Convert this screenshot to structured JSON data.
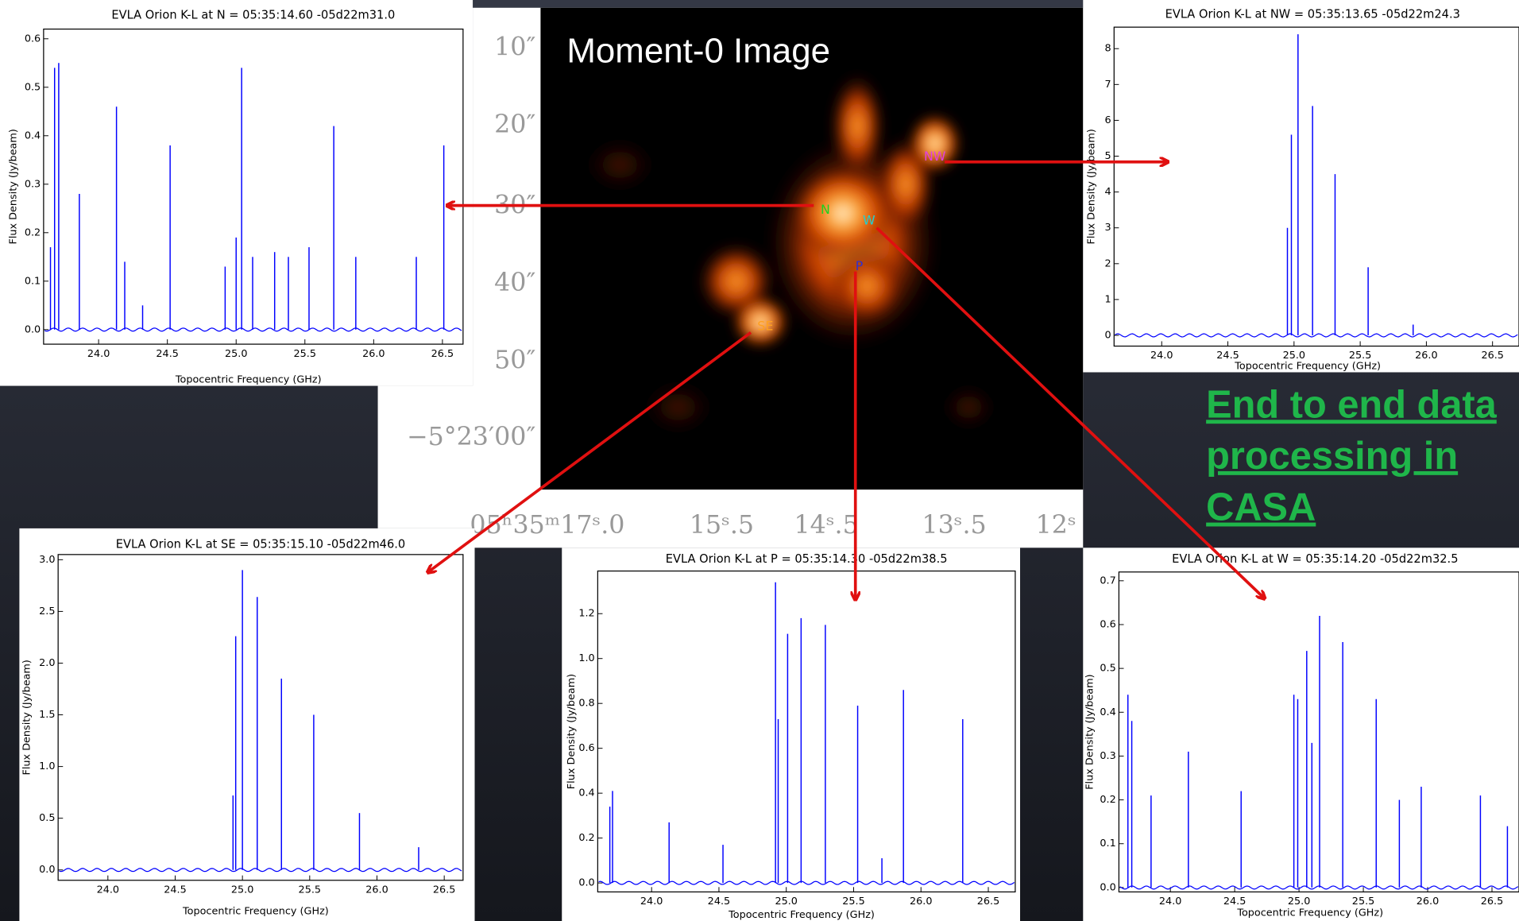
{
  "chart_data": [
    {
      "type": "spectrum",
      "title": "EVLA Orion K-L at N = 05:35:14.60 -05d22m31.0",
      "xlabel": "Topocentric Frequency (GHz)",
      "ylabel": "Flux Density (Jy/beam)",
      "color": "#0000ff",
      "x": [
        23.65,
        23.68,
        23.71,
        23.86,
        24.13,
        24.19,
        24.32,
        24.52,
        24.92,
        25.0,
        25.04,
        25.12,
        25.28,
        25.38,
        25.53,
        25.71,
        25.87,
        26.31,
        26.51
      ],
      "values": [
        0.17,
        0.54,
        0.55,
        0.28,
        0.46,
        0.14,
        0.05,
        0.38,
        0.13,
        0.19,
        0.54,
        0.15,
        0.16,
        0.15,
        0.17,
        0.42,
        0.15,
        0.15,
        0.38
      ],
      "xlim": [
        23.6,
        26.65
      ],
      "ylim": [
        -0.03,
        0.62
      ],
      "xticks": [
        {
          "value": 24,
          "label": "24.0"
        },
        24.5,
        {
          "value": 25,
          "label": "25.0"
        },
        25.5,
        {
          "value": 26,
          "label": "26.0"
        },
        26.5
      ],
      "yticks": [
        {
          "value": 0,
          "label": "0.0"
        },
        0.1,
        0.2,
        0.3,
        0.4,
        0.5,
        0.6
      ]
    },
    {
      "type": "spectrum",
      "title": "EVLA Orion K-L at NW = 05:35:13.65 -05d22m24.3",
      "xlabel": "Topocentric Frequency (GHz)",
      "ylabel": "Flux Density (Jy/beam)",
      "color": "#0000ff",
      "x": [
        24.95,
        24.98,
        25.03,
        25.14,
        25.31,
        25.56,
        25.9
      ],
      "values": [
        3.0,
        5.6,
        8.4,
        6.4,
        4.5,
        1.9,
        0.3
      ],
      "xlim": [
        23.64,
        26.7
      ],
      "ylim": [
        -0.3,
        8.6
      ],
      "xticks": [
        {
          "value": 24,
          "label": "24.0"
        },
        24.5,
        {
          "value": 25,
          "label": "25.0"
        },
        25.5,
        {
          "value": 26,
          "label": "26.0"
        },
        26.5
      ],
      "yticks": [
        0,
        1,
        2,
        3,
        4,
        5,
        6,
        7,
        8
      ]
    },
    {
      "type": "spectrum",
      "title": "EVLA Orion K-L at SE = 05:35:15.10 -05d22m46.0",
      "xlabel": "Topocentric Frequency (GHz)",
      "ylabel": "Flux Density (Jy/beam)",
      "color": "#0000ff",
      "x": [
        24.93,
        24.95,
        25.0,
        25.11,
        25.29,
        25.53,
        25.87,
        26.31
      ],
      "values": [
        0.72,
        2.26,
        2.9,
        2.64,
        1.85,
        1.5,
        0.55,
        0.22
      ],
      "xlim": [
        23.63,
        26.64
      ],
      "ylim": [
        -0.1,
        3.05
      ],
      "xticks": [
        {
          "value": 24,
          "label": "24.0"
        },
        24.5,
        {
          "value": 25,
          "label": "25.0"
        },
        25.5,
        {
          "value": 26,
          "label": "26.0"
        },
        26.5
      ],
      "yticks": [
        {
          "value": 0,
          "label": "0.0"
        },
        0.5,
        {
          "value": 1,
          "label": "1.0"
        },
        1.5,
        {
          "value": 2,
          "label": "2.0"
        },
        2.5,
        {
          "value": 3,
          "label": "3.0"
        }
      ]
    },
    {
      "type": "spectrum",
      "title": "EVLA Orion K-L at P = 05:35:14.30 -05d22m38.5",
      "xlabel": "Topocentric Frequency (GHz)",
      "ylabel": "Flux Density (Jy/beam)",
      "color": "#0000ff",
      "x": [
        23.69,
        23.71,
        24.13,
        24.53,
        24.92,
        24.94,
        25.01,
        25.11,
        25.29,
        25.53,
        25.71,
        25.87,
        26.31
      ],
      "values": [
        0.34,
        0.41,
        0.27,
        0.17,
        1.34,
        0.73,
        1.11,
        1.18,
        1.15,
        0.79,
        0.11,
        0.86,
        0.73
      ],
      "xlim": [
        23.6,
        26.7
      ],
      "ylim": [
        -0.04,
        1.39
      ],
      "xticks": [
        {
          "value": 24,
          "label": "24.0"
        },
        24.5,
        {
          "value": 25,
          "label": "25.0"
        },
        25.5,
        {
          "value": 26,
          "label": "26.0"
        },
        26.5
      ],
      "yticks": [
        {
          "value": 0,
          "label": "0.0"
        },
        0.2,
        0.4,
        0.6,
        0.8,
        {
          "value": 1,
          "label": "1.0"
        },
        1.2
      ]
    },
    {
      "type": "spectrum",
      "title": "EVLA Orion K-L at W = 05:35:14.20 -05d22m32.5",
      "xlabel": "Topocentric Frequency (GHz)",
      "ylabel": "Flux Density (Jy/beam)",
      "color": "#0000ff",
      "x": [
        23.67,
        23.7,
        23.85,
        24.14,
        24.55,
        24.96,
        24.99,
        25.06,
        25.1,
        25.16,
        25.34,
        25.6,
        25.78,
        25.95,
        26.41,
        26.62
      ],
      "values": [
        0.44,
        0.38,
        0.21,
        0.31,
        0.22,
        0.44,
        0.43,
        0.54,
        0.33,
        0.62,
        0.56,
        0.43,
        0.2,
        0.23,
        0.21,
        0.14
      ],
      "xlim": [
        23.6,
        26.71
      ],
      "ylim": [
        -0.01,
        0.72
      ],
      "xticks": [
        {
          "value": 24,
          "label": "24.0"
        },
        24.5,
        {
          "value": 25,
          "label": "25.0"
        },
        25.5,
        {
          "value": 26,
          "label": "26.0"
        },
        26.5
      ],
      "yticks": [
        {
          "value": 0,
          "label": "0.0"
        },
        0.1,
        0.2,
        0.3,
        0.4,
        0.5,
        0.6,
        0.7
      ]
    }
  ],
  "slide": {
    "image_title": "Moment-0 Image",
    "source_labels": [
      "N",
      "NW",
      "W",
      "P",
      "SE"
    ],
    "dec_ticks": [
      "10″",
      "20″",
      "30″",
      "40″",
      "50″",
      "−5°23′00″"
    ],
    "ra_ticks": [
      "05ʰ35ᵐ17ˢ.0",
      "15ˢ.5",
      "14ˢ.5",
      "13ˢ.5",
      "12ˢ"
    ],
    "link_text": [
      "End to end data",
      "processing in",
      "CASA"
    ]
  }
}
